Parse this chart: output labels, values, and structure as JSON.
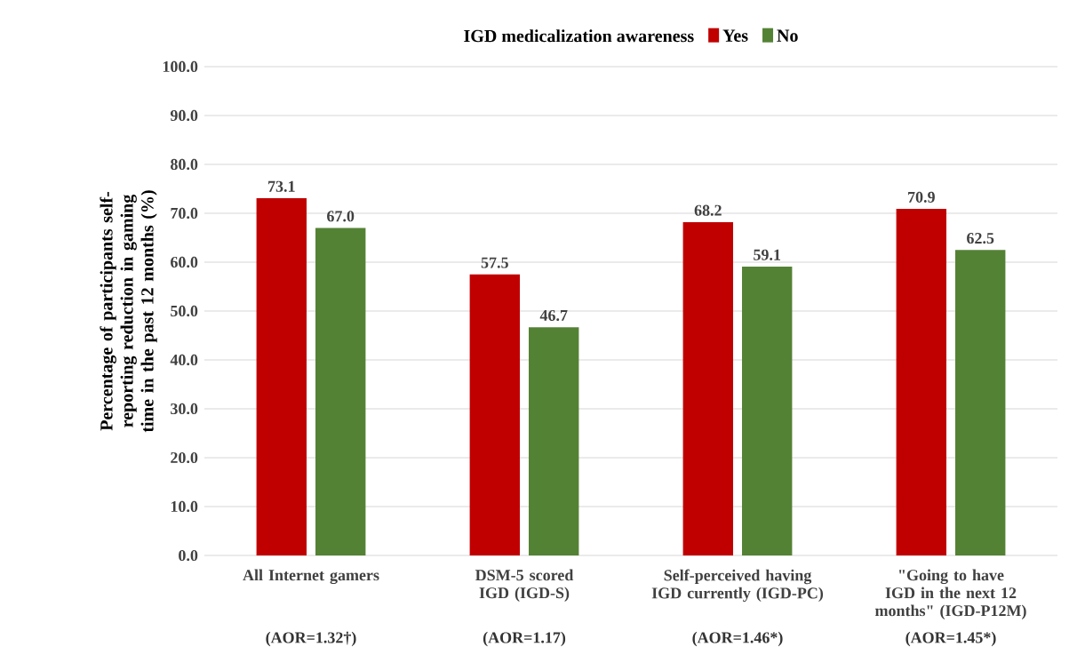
{
  "chart_data": {
    "type": "bar",
    "legend_title": "IGD medicalization awareness",
    "ylabel": "Percentage of participants self-reporting reduction in gaming time in the past 12 months (%)",
    "categories": [
      "All Internet gamers",
      "DSM-5 scored IGD (IGD-S)",
      "Self-perceived having IGD currently (IGD-PC)",
      "\"Going to have IGD in the next 12 months\" (IGD-P12M)"
    ],
    "series": [
      {
        "name": "Yes",
        "color": "#c00000",
        "values": [
          73.1,
          57.5,
          68.2,
          70.9
        ],
        "value_labels": [
          "73.1",
          "57.5",
          "68.2",
          "70.9"
        ]
      },
      {
        "name": "No",
        "color": "#548235",
        "values": [
          67.0,
          46.7,
          59.1,
          62.5
        ],
        "value_labels": [
          "67.0",
          "46.7",
          "59.1",
          "62.5"
        ]
      }
    ],
    "ylim": [
      0,
      100
    ],
    "yticks": [
      {
        "value": 0,
        "label": "0.0"
      },
      {
        "value": 10,
        "label": "10.0"
      },
      {
        "value": 20,
        "label": "20.0"
      },
      {
        "value": 30,
        "label": "30.0"
      },
      {
        "value": 40,
        "label": "40.0"
      },
      {
        "value": 50,
        "label": "50.0"
      },
      {
        "value": 60,
        "label": "60.0"
      },
      {
        "value": 70,
        "label": "70.0"
      },
      {
        "value": 80,
        "label": "80.0"
      },
      {
        "value": 90,
        "label": "90.0"
      },
      {
        "value": 100,
        "label": "100.0"
      }
    ],
    "grid": "y",
    "legend": "top",
    "annotations": [
      "(AOR=1.32†)",
      "(AOR=1.17)",
      "(AOR=1.46*)",
      "(AOR=1.45*)"
    ]
  }
}
